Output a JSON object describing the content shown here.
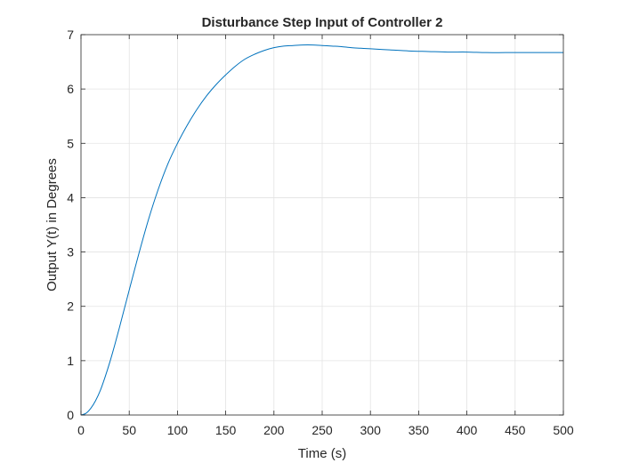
{
  "chart_data": {
    "type": "line",
    "title": "Disturbance Step Input of Controller 2",
    "xlabel": "Time (s)",
    "ylabel": "Output Y(t) in Degrees",
    "xlim": [
      0,
      500
    ],
    "ylim": [
      0,
      7
    ],
    "xticks": [
      0,
      50,
      100,
      150,
      200,
      250,
      300,
      350,
      400,
      450,
      500
    ],
    "yticks": [
      0,
      1,
      2,
      3,
      4,
      5,
      6,
      7
    ],
    "grid": true,
    "series_color": "#0072BD",
    "series": [
      {
        "x": [
          0,
          5,
          10,
          15,
          20,
          25,
          30,
          35,
          40,
          45,
          50,
          60,
          70,
          80,
          90,
          100,
          110,
          120,
          130,
          140,
          150,
          160,
          170,
          180,
          190,
          200,
          210,
          220,
          230,
          240,
          250,
          260,
          270,
          280,
          290,
          300,
          320,
          340,
          360,
          380,
          400,
          420,
          440,
          460,
          480,
          500
        ],
        "y": [
          0,
          0.03,
          0.12,
          0.26,
          0.45,
          0.7,
          0.98,
          1.29,
          1.62,
          1.96,
          2.3,
          2.97,
          3.6,
          4.15,
          4.62,
          5.0,
          5.33,
          5.62,
          5.87,
          6.08,
          6.26,
          6.42,
          6.55,
          6.64,
          6.71,
          6.76,
          6.79,
          6.8,
          6.81,
          6.81,
          6.8,
          6.79,
          6.78,
          6.76,
          6.75,
          6.74,
          6.72,
          6.7,
          6.69,
          6.68,
          6.68,
          6.67,
          6.67,
          6.67,
          6.67,
          6.67
        ]
      }
    ]
  }
}
